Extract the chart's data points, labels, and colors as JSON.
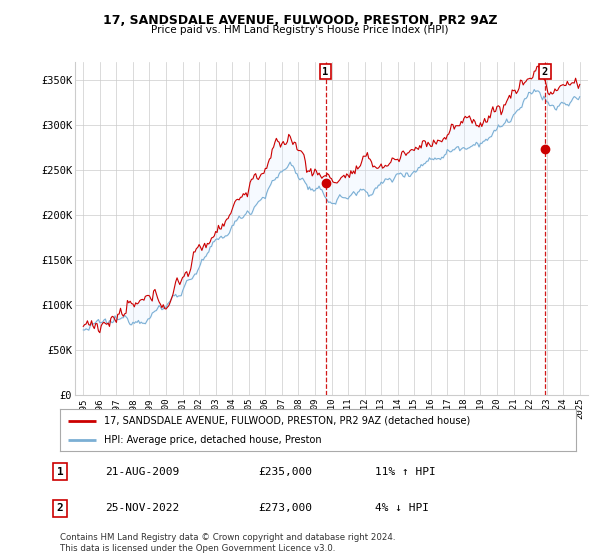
{
  "title_line1": "17, SANDSDALE AVENUE, FULWOOD, PRESTON, PR2 9AZ",
  "title_line2": "Price paid vs. HM Land Registry's House Price Index (HPI)",
  "ylabel_ticks": [
    "£0",
    "£50K",
    "£100K",
    "£150K",
    "£200K",
    "£250K",
    "£300K",
    "£350K"
  ],
  "ylabel_values": [
    0,
    50000,
    100000,
    150000,
    200000,
    250000,
    300000,
    350000
  ],
  "ylim": [
    0,
    370000
  ],
  "xlim_start": 1994.5,
  "xlim_end": 2025.5,
  "sale1_date": 2009.64,
  "sale1_price": 235000,
  "sale1_label": "1",
  "sale1_hpi_change": "11% ↑ HPI",
  "sale1_date_str": "21-AUG-2009",
  "sale2_date": 2022.9,
  "sale2_price": 273000,
  "sale2_label": "2",
  "sale2_hpi_change": "4% ↓ HPI",
  "sale2_date_str": "25-NOV-2022",
  "legend_line1": "17, SANDSDALE AVENUE, FULWOOD, PRESTON, PR2 9AZ (detached house)",
  "legend_line2": "HPI: Average price, detached house, Preston",
  "footer": "Contains HM Land Registry data © Crown copyright and database right 2024.\nThis data is licensed under the Open Government Licence v3.0.",
  "hpi_color": "#7bafd4",
  "price_color": "#cc0000",
  "fill_color": "#ddeeff",
  "grid_color": "#cccccc",
  "background_color": "#ffffff"
}
